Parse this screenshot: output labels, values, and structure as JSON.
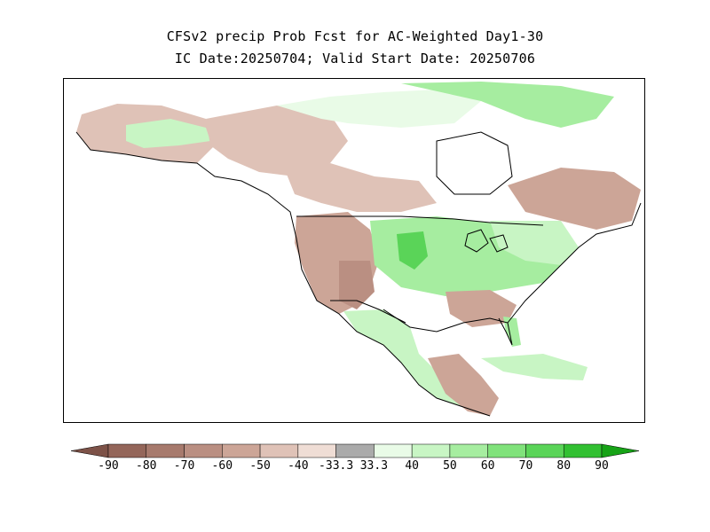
{
  "title": {
    "line1": "CFSv2 precip Prob Fcst for AC-Weighted Day1-30",
    "line2": "IC Date:20250704; Valid Start Date: 20250706"
  },
  "legend": {
    "labels": [
      "-90",
      "-80",
      "-70",
      "-60",
      "-50",
      "-40",
      "-33.3",
      "33.3",
      "40",
      "50",
      "60",
      "70",
      "80",
      "90"
    ],
    "colors": [
      "#7d5248",
      "#94665a",
      "#a77a6d",
      "#ba8f82",
      "#cca597",
      "#dfc2b7",
      "#efddd5",
      "#aaaaaa",
      "#e9fbe7",
      "#c8f5c4",
      "#a6eda0",
      "#80e27b",
      "#5ad458",
      "#32c032",
      "#17a317"
    ]
  },
  "colors": {
    "land_neutral": "#ffffff",
    "coast": "#000000",
    "dry": "#cca597",
    "wet": "#80e27b"
  }
}
